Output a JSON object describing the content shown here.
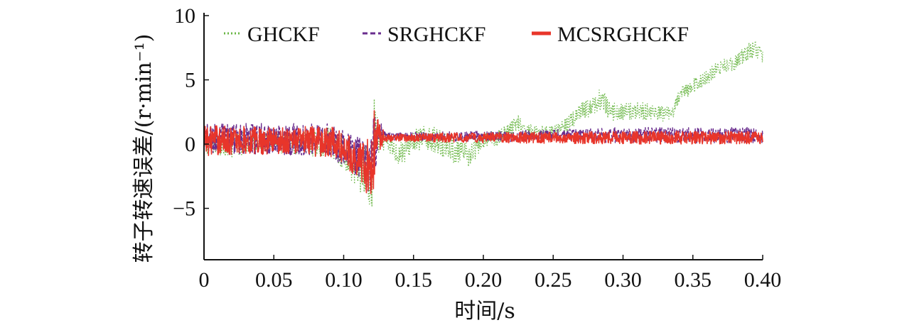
{
  "chart_data": {
    "type": "line",
    "xlabel": "时间/s",
    "ylabel": "转子转速误差/(r·min⁻¹)",
    "xlim": [
      0,
      0.4
    ],
    "ylim": [
      -9,
      10
    ],
    "x_ticks": [
      0,
      0.05,
      0.1,
      0.15,
      0.2,
      0.25,
      0.3,
      0.35,
      0.4
    ],
    "x_tick_labels": [
      "0",
      "0.05",
      "0.10",
      "0.15",
      "0.20",
      "0.25",
      "0.30",
      "0.35",
      "0.40"
    ],
    "y_ticks": [
      -5,
      0,
      5,
      10
    ],
    "y_tick_labels": [
      "−5",
      "0",
      "5",
      "10"
    ],
    "grid": false,
    "legend_position": "top",
    "series": [
      {
        "name": "GHCKF",
        "color": "#6ab645",
        "dash": "dotted",
        "x": [
          0,
          0.02,
          0.04,
          0.06,
          0.08,
          0.09,
          0.1,
          0.105,
          0.11,
          0.115,
          0.12,
          0.122,
          0.125,
          0.13,
          0.14,
          0.15,
          0.16,
          0.17,
          0.18,
          0.19,
          0.2,
          0.21,
          0.22,
          0.225,
          0.23,
          0.24,
          0.25,
          0.26,
          0.27,
          0.28,
          0.285,
          0.29,
          0.3,
          0.31,
          0.32,
          0.33,
          0.335,
          0.34,
          0.35,
          0.36,
          0.37,
          0.38,
          0.39,
          0.395,
          0.4
        ],
        "y": [
          0.2,
          0,
          0.3,
          0.1,
          0,
          0.2,
          -0.6,
          -1.5,
          -2.0,
          -1.8,
          -3.5,
          1.5,
          0.2,
          0.2,
          -0.8,
          0.2,
          0.5,
          0.1,
          -0.6,
          -0.9,
          0.3,
          0.5,
          1.2,
          1.8,
          1.0,
          1.0,
          0.9,
          1.5,
          2.5,
          3.0,
          3.6,
          2.5,
          2.5,
          2.6,
          2.5,
          2.3,
          2.2,
          3.8,
          4.5,
          5.2,
          6.0,
          6.3,
          7.2,
          7.5,
          6.9
        ],
        "amplitude": [
          1.0,
          1.0,
          0.9,
          0.9,
          1.0,
          1.2,
          1.4,
          1.6,
          1.8,
          2.0,
          2.6,
          2.4,
          1.0,
          0.6,
          1.0,
          0.9,
          1.0,
          1.0,
          1.0,
          0.9,
          0.6,
          0.6,
          0.6,
          0.7,
          0.6,
          0.5,
          0.5,
          0.6,
          0.7,
          0.8,
          0.9,
          0.8,
          0.7,
          0.7,
          0.7,
          0.6,
          0.6,
          0.6,
          0.6,
          0.6,
          0.6,
          0.6,
          0.7,
          0.7,
          0.6
        ]
      },
      {
        "name": "SRGHCKF",
        "color": "#6a2d8e",
        "dash": "dashed",
        "x": [
          0,
          0.05,
          0.09,
          0.1,
          0.11,
          0.115,
          0.12,
          0.122,
          0.125,
          0.13,
          0.2,
          0.3,
          0.4
        ],
        "y": [
          0.4,
          0.4,
          0.3,
          -0.3,
          -1.0,
          -1.5,
          -2.0,
          0.2,
          0.8,
          0.6,
          0.6,
          0.7,
          0.7
        ],
        "amplitude": [
          1.3,
          1.2,
          1.3,
          1.4,
          1.6,
          2.0,
          2.6,
          2.8,
          1.2,
          0.3,
          0.4,
          0.6,
          0.6
        ]
      },
      {
        "name": "MCSRGHCKF",
        "color": "#e8352a",
        "dash": "solid",
        "x": [
          0,
          0.05,
          0.09,
          0.1,
          0.11,
          0.115,
          0.12,
          0.122,
          0.125,
          0.13,
          0.2,
          0.3,
          0.4
        ],
        "y": [
          0.3,
          0.3,
          0.2,
          -0.4,
          -1.1,
          -1.6,
          -2.2,
          0.0,
          0.6,
          0.5,
          0.5,
          0.5,
          0.5
        ],
        "amplitude": [
          1.2,
          1.1,
          1.2,
          1.3,
          1.5,
          2.0,
          2.8,
          3.0,
          1.2,
          0.3,
          0.4,
          0.5,
          0.5
        ]
      }
    ]
  }
}
